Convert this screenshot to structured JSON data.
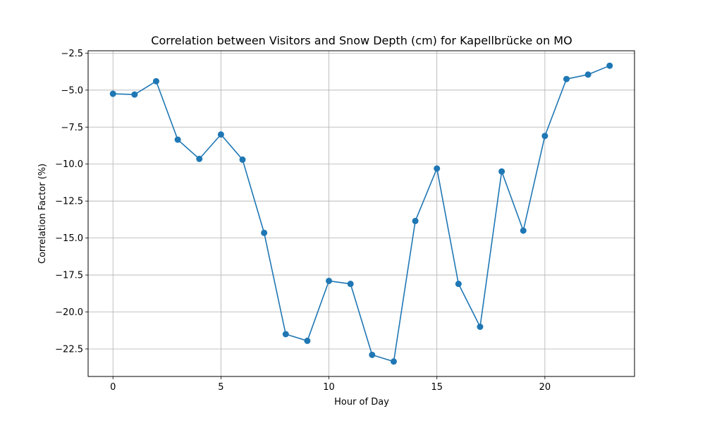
{
  "chart_data": {
    "type": "line",
    "title": "Correlation between Visitors and Snow Depth (cm) for Kapellbrücke on MO",
    "xlabel": "Hour of Day",
    "ylabel": "Correlation Factor (%)",
    "x": [
      0,
      1,
      2,
      3,
      4,
      5,
      6,
      7,
      8,
      9,
      10,
      11,
      12,
      13,
      14,
      15,
      16,
      17,
      18,
      19,
      20,
      21,
      22,
      23
    ],
    "series": [
      {
        "name": "Correlation",
        "color": "#1f77b4",
        "values": [
          -5.25,
          -5.3,
          -4.4,
          -8.35,
          -9.65,
          -8.0,
          -9.7,
          -14.65,
          -21.5,
          -21.95,
          -17.9,
          -18.1,
          -22.9,
          -23.35,
          -13.85,
          -10.3,
          -18.1,
          -21.0,
          -10.5,
          -14.5,
          -8.1,
          -4.25,
          -3.95,
          -3.35
        ]
      }
    ],
    "xlim": [
      -1.15,
      24.15
    ],
    "ylim": [
      -24.36,
      -2.34
    ],
    "xticks": [
      0,
      5,
      10,
      15,
      20
    ],
    "yticks": [
      -22.5,
      -20.0,
      -17.5,
      -15.0,
      -12.5,
      -10.0,
      -7.5,
      -5.0,
      -2.5
    ],
    "xtick_labels": [
      "0",
      "5",
      "10",
      "15",
      "20"
    ],
    "ytick_labels": [
      "−22.5",
      "−20.0",
      "−17.5",
      "−15.0",
      "−12.5",
      "−10.0",
      "−7.5",
      "−5.0",
      "−2.5"
    ],
    "grid": true,
    "marker": "circle",
    "legend": "none"
  }
}
